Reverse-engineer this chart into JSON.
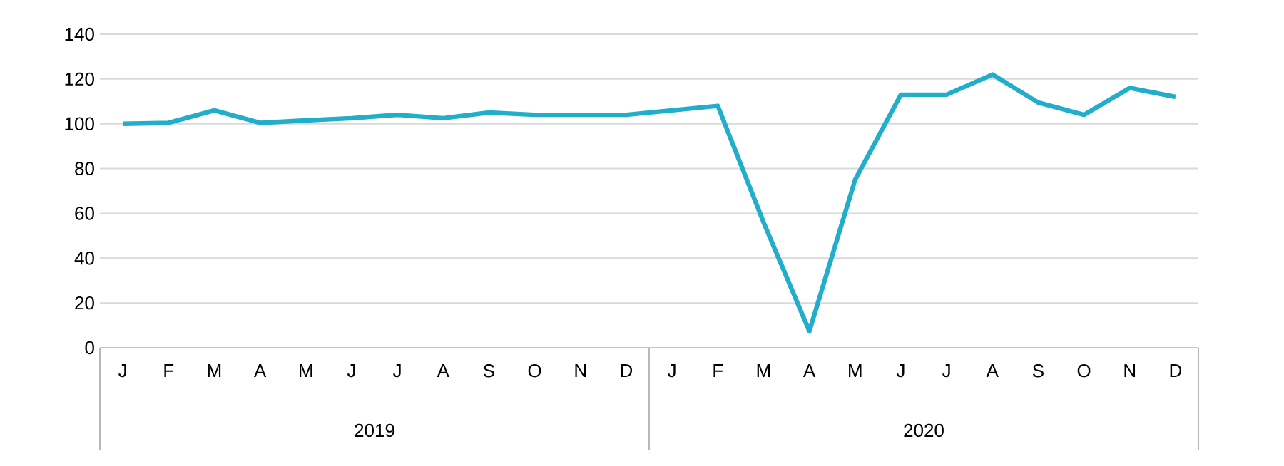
{
  "chart_data": {
    "type": "line",
    "categories": [
      "J",
      "F",
      "M",
      "A",
      "M",
      "J",
      "J",
      "A",
      "S",
      "O",
      "N",
      "D",
      "J",
      "F",
      "M",
      "A",
      "M",
      "J",
      "J",
      "A",
      "S",
      "O",
      "N",
      "D"
    ],
    "series": [
      {
        "color": "#22aecb",
        "values": [
          100,
          100.4,
          106,
          100.4,
          101.5,
          102.5,
          104,
          102.5,
          105,
          104,
          104,
          104,
          106,
          108,
          56,
          7.4,
          75,
          113,
          113,
          122,
          109.5,
          104,
          116,
          112
        ]
      }
    ],
    "annotations": [
      "2019",
      "2020"
    ],
    "ylim": [
      0,
      140
    ],
    "yticks": [
      0,
      20,
      40,
      60,
      80,
      100,
      120,
      140
    ],
    "grid": "y",
    "marker": "none",
    "line_style": "solid"
  }
}
